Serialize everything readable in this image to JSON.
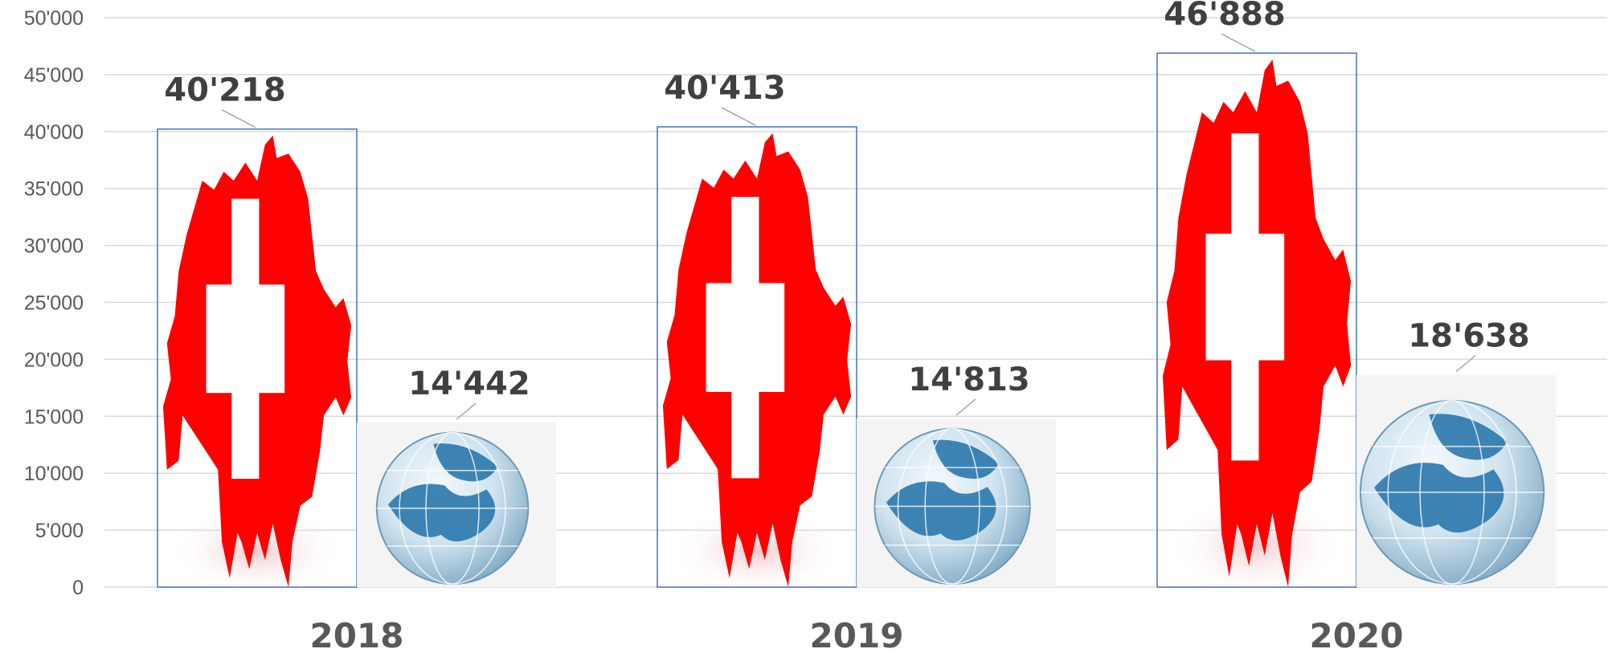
{
  "chart_data": {
    "type": "bar",
    "categories": [
      "2018",
      "2019",
      "2020"
    ],
    "series": [
      {
        "values": [
          40218,
          40413,
          46888
        ],
        "labels": [
          "40'218",
          "40'413",
          "46'888"
        ],
        "fill_picture": "swiss-map-with-flag-cross",
        "color": "#ff0000",
        "outline_color": "#4472c4"
      },
      {
        "values": [
          14442,
          14813,
          18638
        ],
        "labels": [
          "14'442",
          "14'813",
          "18'638"
        ],
        "fill_picture": "earth-globe",
        "color": "#1f6fa3"
      }
    ],
    "ylim": [
      0,
      50000
    ],
    "yticks": [
      0,
      5000,
      10000,
      15000,
      20000,
      25000,
      30000,
      35000,
      40000,
      45000,
      50000
    ],
    "ytick_labels": [
      "0",
      "5'000",
      "10'000",
      "15'000",
      "20'000",
      "25'000",
      "30'000",
      "35'000",
      "40'000",
      "45'000",
      "50'000"
    ],
    "grid": true,
    "legend": "none",
    "title": "",
    "xlabel": "",
    "ylabel": ""
  }
}
